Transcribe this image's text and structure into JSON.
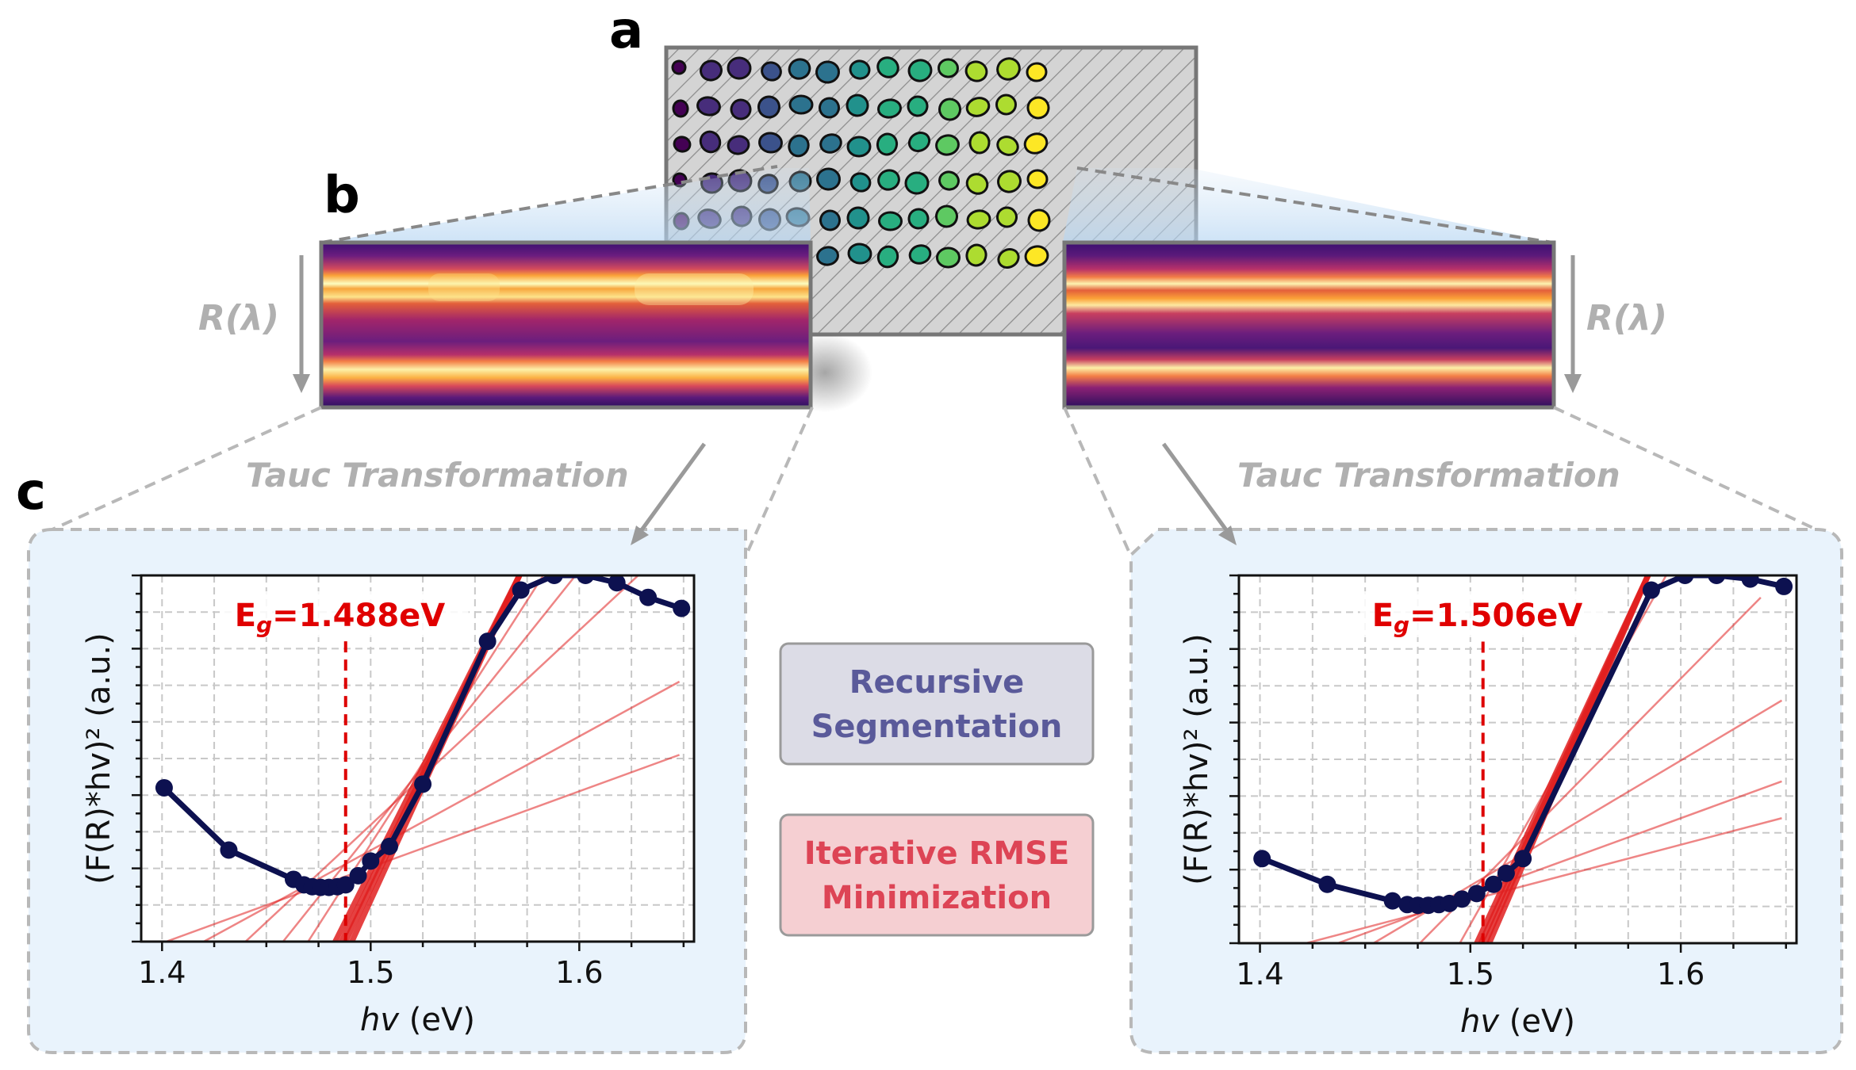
{
  "panel_labels": {
    "a": "a",
    "b": "b",
    "c": "c"
  },
  "reflectance_label_left": "R(λ)",
  "reflectance_label_right": "R(λ)",
  "transform_label_left": "Tauc Transformation",
  "transform_label_right": "Tauc Transformation",
  "methods": {
    "segmentation": {
      "line1": "Recursive",
      "line2": "Segmentation",
      "color": "#5a5a9a",
      "bg": "#dcdce6"
    },
    "rmse": {
      "line1": "Iterative RMSE",
      "line2": "Minimization",
      "color": "#dd4455",
      "bg": "#f5cfd2"
    }
  },
  "colors": {
    "panel_bg": "#e9f3fc",
    "curve": "#0d1150",
    "fit_line": "#e02020",
    "bandgap_marker": "#dd0000",
    "grid": "#c8c8c8"
  },
  "chart_data": [
    {
      "type": "line",
      "xlabel": "hv (eV)",
      "ylabel": "(F(R)*hv)² (a.u.)",
      "xlim": [
        1.39,
        1.655
      ],
      "ylim": [
        0,
        1
      ],
      "x_ticks": [
        "1.4",
        "1.5",
        "1.6"
      ],
      "bandgap": {
        "label_prefix": "E",
        "label_sub": "g",
        "label_value": "=1.488eV",
        "value": 1.488
      },
      "series": [
        {
          "x": [
            1.401,
            1.432,
            1.463,
            1.468,
            1.472,
            1.476,
            1.48,
            1.484,
            1.488,
            1.494,
            1.5,
            1.509,
            1.525,
            1.556,
            1.572,
            1.588,
            1.603,
            1.618,
            1.633,
            1.649
          ],
          "y": [
            0.42,
            0.25,
            0.17,
            0.155,
            0.15,
            0.148,
            0.148,
            0.15,
            0.155,
            0.18,
            0.22,
            0.26,
            0.43,
            0.82,
            0.96,
            1.0,
            1.0,
            0.98,
            0.94,
            0.91
          ]
        }
      ],
      "fit_lines": [
        {
          "x": [
            1.483,
            1.573
          ],
          "y": [
            0.0,
            1.02
          ]
        },
        {
          "x": [
            1.486,
            1.573
          ],
          "y": [
            0.0,
            1.02
          ]
        },
        {
          "x": [
            1.488,
            1.573
          ],
          "y": [
            0.0,
            1.02
          ]
        },
        {
          "x": [
            1.491,
            1.573
          ],
          "y": [
            0.0,
            1.02
          ]
        },
        {
          "x": [
            1.47,
            1.585
          ],
          "y": [
            0.0,
            1.02
          ]
        },
        {
          "x": [
            1.458,
            1.601
          ],
          "y": [
            0.0,
            1.02
          ]
        },
        {
          "x": [
            1.44,
            1.632
          ],
          "y": [
            0.0,
            1.02
          ]
        },
        {
          "x": [
            1.42,
            1.648
          ],
          "y": [
            0.0,
            0.71
          ]
        },
        {
          "x": [
            1.402,
            1.648
          ],
          "y": [
            0.0,
            0.51
          ]
        }
      ]
    },
    {
      "type": "line",
      "xlabel": "hv (eV)",
      "ylabel": "(F(R)*hv)² (a.u.)",
      "xlim": [
        1.39,
        1.655
      ],
      "ylim": [
        0,
        1
      ],
      "x_ticks": [
        "1.4",
        "1.5",
        "1.6"
      ],
      "bandgap": {
        "label_prefix": "E",
        "label_sub": "g",
        "label_value": "=1.506eV",
        "value": 1.506
      },
      "series": [
        {
          "x": [
            1.401,
            1.432,
            1.463,
            1.47,
            1.475,
            1.48,
            1.485,
            1.49,
            1.496,
            1.503,
            1.511,
            1.517,
            1.525,
            1.586,
            1.602,
            1.617,
            1.633,
            1.649
          ],
          "y": [
            0.23,
            0.16,
            0.115,
            0.105,
            0.103,
            0.103,
            0.105,
            0.108,
            0.12,
            0.135,
            0.16,
            0.19,
            0.23,
            0.96,
            1.0,
            1.0,
            0.99,
            0.97
          ]
        }
      ],
      "fit_lines": [
        {
          "x": [
            1.503,
            1.586
          ],
          "y": [
            0.0,
            1.02
          ]
        },
        {
          "x": [
            1.505,
            1.586
          ],
          "y": [
            0.0,
            1.02
          ]
        },
        {
          "x": [
            1.507,
            1.586
          ],
          "y": [
            0.0,
            1.02
          ]
        },
        {
          "x": [
            1.509,
            1.586
          ],
          "y": [
            0.0,
            1.02
          ]
        },
        {
          "x": [
            1.495,
            1.595
          ],
          "y": [
            0.0,
            1.02
          ]
        },
        {
          "x": [
            1.476,
            1.638
          ],
          "y": [
            0.0,
            0.94
          ]
        },
        {
          "x": [
            1.454,
            1.648
          ],
          "y": [
            0.0,
            0.66
          ]
        },
        {
          "x": [
            1.437,
            1.648
          ],
          "y": [
            0.0,
            0.44
          ]
        },
        {
          "x": [
            1.422,
            1.648
          ],
          "y": [
            0.0,
            0.34
          ]
        }
      ]
    }
  ]
}
